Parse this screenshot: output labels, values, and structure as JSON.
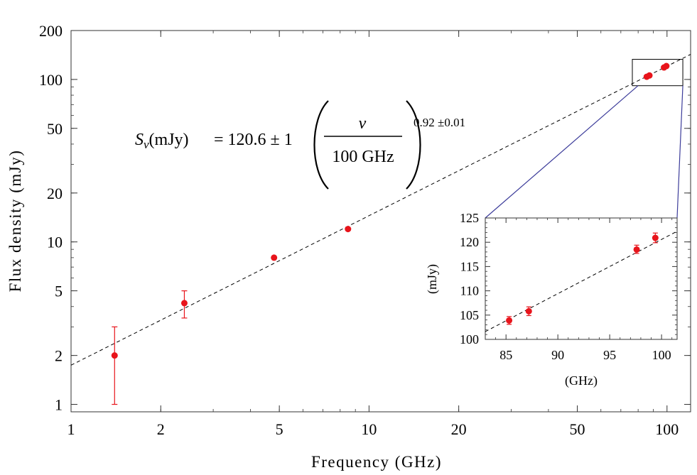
{
  "chart_data": [
    {
      "type": "scatter",
      "xlabel": "Frequency (GHz)",
      "ylabel": "Flux density (mJy)",
      "xscale": "log",
      "yscale": "log",
      "xlim": [
        1,
        120
      ],
      "ylim": [
        0.9,
        200
      ],
      "x_ticks": [
        1,
        2,
        5,
        10,
        20,
        50,
        100
      ],
      "x_tick_labels": [
        "1",
        "2",
        "5",
        "10",
        "20",
        "50",
        "100"
      ],
      "y_ticks": [
        1,
        2,
        5,
        10,
        20,
        50,
        100,
        200
      ],
      "y_tick_labels": [
        "1",
        "2",
        "5",
        "10",
        "20",
        "50",
        "100",
        "200"
      ],
      "grid": false,
      "points": [
        {
          "x": 1.4,
          "y": 2.0,
          "err_low": 1.0,
          "err_high": 3.0
        },
        {
          "x": 2.4,
          "y": 4.2,
          "err_low": 3.4,
          "err_high": 5.0
        },
        {
          "x": 4.8,
          "y": 8.0
        },
        {
          "x": 8.5,
          "y": 12.0
        },
        {
          "x": 85.5,
          "y": 103.9
        },
        {
          "x": 87.3,
          "y": 105.8
        },
        {
          "x": 97.7,
          "y": 118.5
        },
        {
          "x": 99.5,
          "y": 120.9
        }
      ],
      "fit": {
        "amplitude_mJy": 120.6,
        "amplitude_err": 1,
        "pivot_GHz": 100,
        "index": 0.92,
        "index_err": 0.01
      },
      "equation": {
        "lhs": "S",
        "subscript": "ν",
        "unit": "(mJy)",
        "rhs": "= 120.6 ± 1",
        "numerator": "ν",
        "denominator": "100 GHz",
        "exponent": "0.92 ±0.01"
      },
      "colors": {
        "points": "#e8141b",
        "fit": "#000000",
        "zoom_lines": "#3c3c9a"
      }
    },
    {
      "type": "scatter",
      "xlabel": "(GHz)",
      "ylabel": "(mJy)",
      "xlim": [
        83,
        101.5
      ],
      "ylim": [
        100,
        125
      ],
      "x_ticks": [
        85,
        90,
        95,
        100
      ],
      "x_tick_labels": [
        "85",
        "90",
        "95",
        "100"
      ],
      "y_ticks": [
        100,
        105,
        110,
        115,
        120,
        125
      ],
      "y_tick_labels": [
        "100",
        "105",
        "110",
        "115",
        "120",
        "125"
      ],
      "grid": false,
      "points": [
        {
          "x": 85.3,
          "y": 103.9,
          "err_low": 103.1,
          "err_high": 104.7
        },
        {
          "x": 87.2,
          "y": 105.8,
          "err_low": 104.9,
          "err_high": 106.7
        },
        {
          "x": 97.6,
          "y": 118.5,
          "err_low": 117.7,
          "err_high": 119.4
        },
        {
          "x": 99.4,
          "y": 120.9,
          "err_low": 119.9,
          "err_high": 121.9
        }
      ]
    }
  ]
}
